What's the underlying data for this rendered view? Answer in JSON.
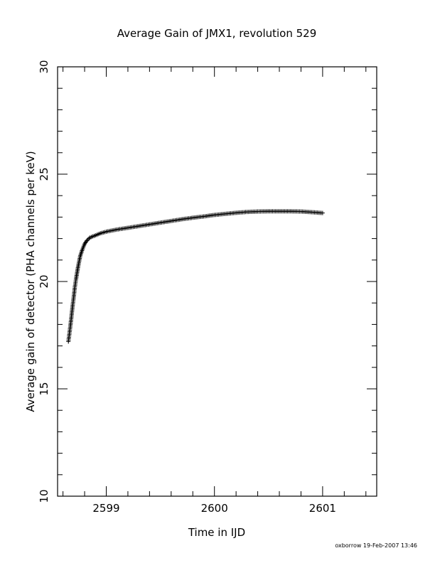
{
  "chart_data": {
    "type": "scatter",
    "marker": "+",
    "title": "Average Gain of JMX1, revolution 529",
    "xlabel": "Time in IJD",
    "ylabel": "Average gain of detector (PHA channels per keV)",
    "xlim": [
      2598.55,
      2601.5
    ],
    "ylim": [
      10,
      30
    ],
    "xticks": [
      2599,
      2600,
      2601
    ],
    "xtick_labels": [
      "2599",
      "2600",
      "2601"
    ],
    "yticks": [
      10,
      15,
      20,
      25,
      30
    ],
    "ytick_labels": [
      "10",
      "15",
      "20",
      "25",
      "30"
    ],
    "x_minor_step": 0.2,
    "y_minor_step": 1,
    "grid": false,
    "series": [
      {
        "color": "#000000",
        "points": [
          [
            2598.65,
            17.2
          ],
          [
            2598.66,
            17.6
          ],
          [
            2598.67,
            18.0
          ],
          [
            2598.68,
            18.45
          ],
          [
            2598.69,
            18.9
          ],
          [
            2598.7,
            19.3
          ],
          [
            2598.71,
            19.75
          ],
          [
            2598.72,
            20.1
          ],
          [
            2598.73,
            20.4
          ],
          [
            2598.74,
            20.7
          ],
          [
            2598.75,
            20.95
          ],
          [
            2598.76,
            21.2
          ],
          [
            2598.78,
            21.5
          ],
          [
            2598.8,
            21.75
          ],
          [
            2598.82,
            21.9
          ],
          [
            2598.85,
            22.05
          ],
          [
            2598.9,
            22.15
          ],
          [
            2598.95,
            22.25
          ],
          [
            2599.0,
            22.32
          ],
          [
            2599.1,
            22.42
          ],
          [
            2599.2,
            22.5
          ],
          [
            2599.3,
            22.58
          ],
          [
            2599.4,
            22.66
          ],
          [
            2599.5,
            22.74
          ],
          [
            2599.6,
            22.82
          ],
          [
            2599.7,
            22.9
          ],
          [
            2599.8,
            22.97
          ],
          [
            2599.9,
            23.03
          ],
          [
            2600.0,
            23.1
          ],
          [
            2600.1,
            23.15
          ],
          [
            2600.2,
            23.2
          ],
          [
            2600.3,
            23.24
          ],
          [
            2600.4,
            23.26
          ],
          [
            2600.5,
            23.27
          ],
          [
            2600.6,
            23.27
          ],
          [
            2600.7,
            23.27
          ],
          [
            2600.8,
            23.26
          ],
          [
            2600.9,
            23.23
          ],
          [
            2601.0,
            23.19
          ]
        ]
      }
    ]
  },
  "footer": {
    "signature": "oxborrow 19-Feb-2007 13:46"
  }
}
